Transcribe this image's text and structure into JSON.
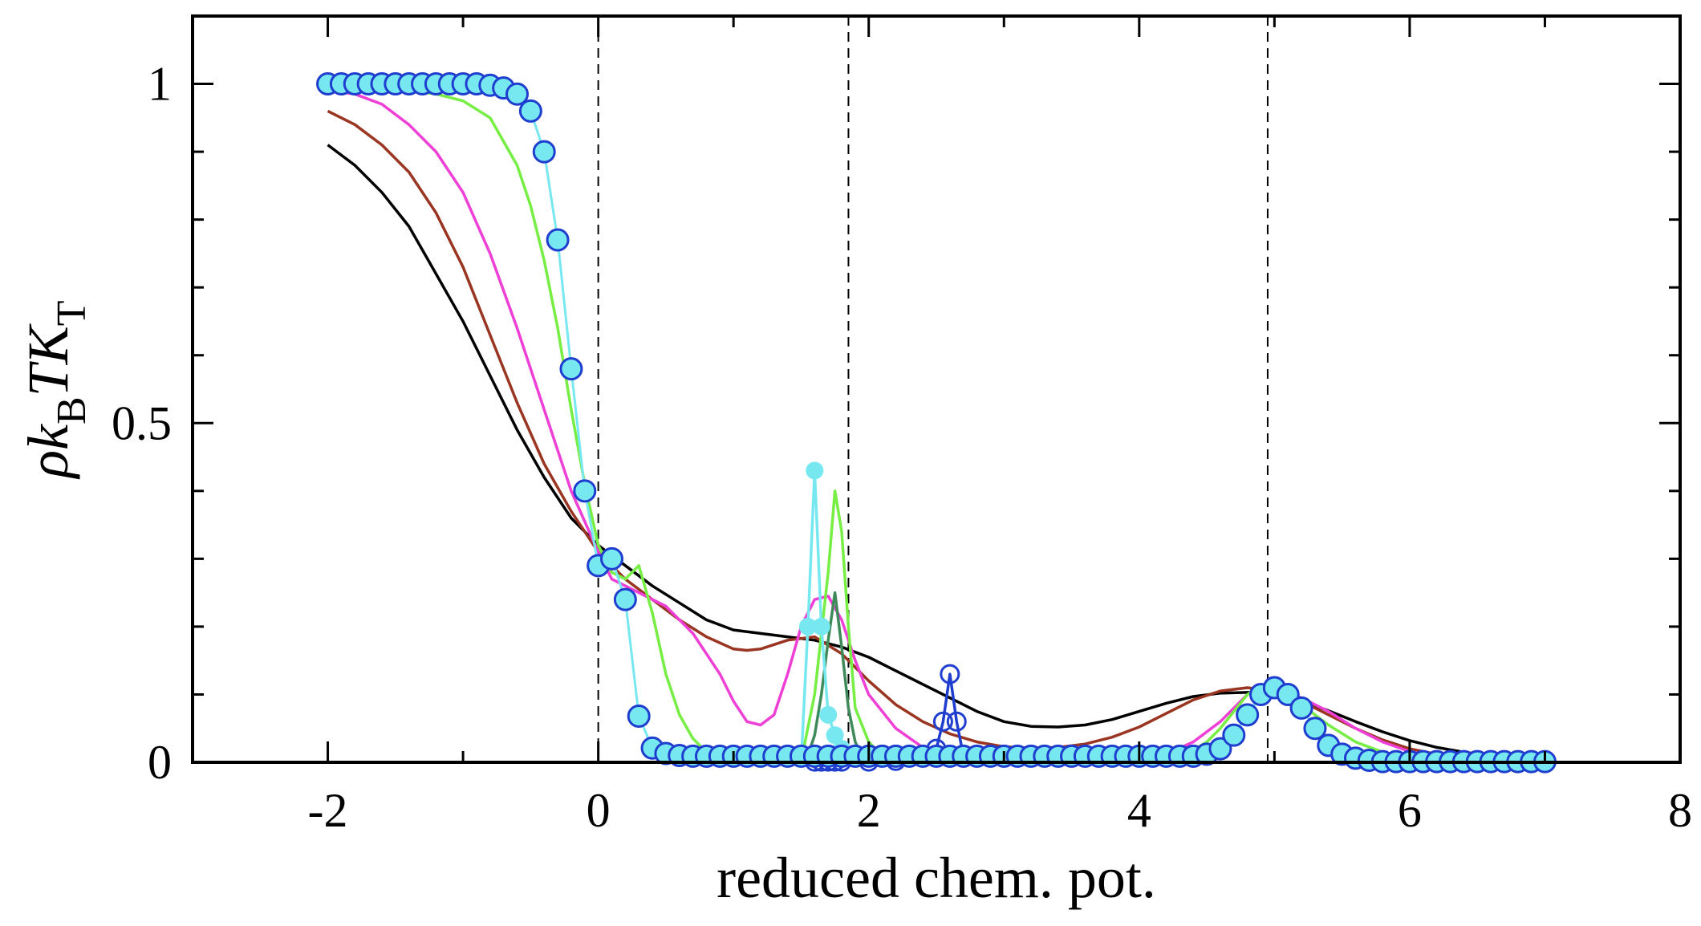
{
  "chart_data": {
    "type": "line",
    "title": "",
    "xlabel": "reduced chem. pot.",
    "ylabel": "ρk_B T K_T",
    "ylabel_parts": {
      "rho": "ρ",
      "k": "k",
      "B": "B",
      "T": "T",
      "K": "K",
      "Tsub": "T"
    },
    "xlim": [
      -3,
      8
    ],
    "ylim": [
      0,
      1.1
    ],
    "x_ticks": [
      -2,
      0,
      2,
      4,
      6,
      8
    ],
    "x_tick_labels": [
      "-2",
      "0",
      "2",
      "4",
      "6",
      "8"
    ],
    "y_ticks": [
      0,
      0.5,
      1
    ],
    "y_tick_labels": [
      "0",
      "0.5",
      "1"
    ],
    "vertical_reference_lines": [
      0,
      1.85,
      4.95
    ],
    "colors": {
      "black": "#000000",
      "brown": "#9a3522",
      "magenta": "#ee3fd6",
      "green": "#77ee44",
      "darkgreen": "#3f8a5a",
      "blue": "#1f3ecf",
      "cyan": "#77e8f0"
    },
    "series": [
      {
        "name": "black",
        "color": "#000000",
        "x": [
          -2.0,
          -1.8,
          -1.6,
          -1.4,
          -1.2,
          -1.0,
          -0.8,
          -0.6,
          -0.4,
          -0.2,
          0.0,
          0.2,
          0.4,
          0.6,
          0.8,
          1.0,
          1.2,
          1.4,
          1.6,
          1.8,
          2.0,
          2.2,
          2.4,
          2.6,
          2.8,
          3.0,
          3.2,
          3.4,
          3.6,
          3.8,
          4.0,
          4.2,
          4.4,
          4.6,
          4.8,
          5.0,
          5.2,
          5.4,
          5.6,
          5.8,
          6.0,
          6.2,
          6.4,
          6.6,
          6.8,
          7.0
        ],
        "y": [
          0.91,
          0.88,
          0.84,
          0.79,
          0.72,
          0.65,
          0.57,
          0.49,
          0.42,
          0.36,
          0.32,
          0.29,
          0.26,
          0.235,
          0.21,
          0.195,
          0.19,
          0.185,
          0.18,
          0.17,
          0.155,
          0.135,
          0.115,
          0.095,
          0.075,
          0.06,
          0.053,
          0.052,
          0.055,
          0.063,
          0.075,
          0.087,
          0.097,
          0.102,
          0.103,
          0.1,
          0.09,
          0.076,
          0.06,
          0.045,
          0.032,
          0.022,
          0.015,
          0.01,
          0.007,
          0.005
        ]
      },
      {
        "name": "brown",
        "color": "#9a3522",
        "x": [
          -2.0,
          -1.8,
          -1.6,
          -1.4,
          -1.2,
          -1.0,
          -0.8,
          -0.6,
          -0.4,
          -0.2,
          0.0,
          0.2,
          0.4,
          0.6,
          0.8,
          1.0,
          1.1,
          1.2,
          1.4,
          1.6,
          1.8,
          2.0,
          2.2,
          2.4,
          2.6,
          2.8,
          3.0,
          3.2,
          3.4,
          3.6,
          3.8,
          4.0,
          4.2,
          4.4,
          4.6,
          4.8,
          5.0,
          5.2,
          5.4,
          5.6,
          5.8,
          6.0,
          6.2,
          6.4,
          6.6,
          6.8,
          7.0
        ],
        "y": [
          0.96,
          0.94,
          0.91,
          0.87,
          0.81,
          0.73,
          0.63,
          0.53,
          0.44,
          0.37,
          0.31,
          0.27,
          0.24,
          0.21,
          0.185,
          0.167,
          0.165,
          0.167,
          0.18,
          0.185,
          0.16,
          0.12,
          0.085,
          0.06,
          0.042,
          0.03,
          0.023,
          0.021,
          0.022,
          0.027,
          0.037,
          0.052,
          0.072,
          0.092,
          0.105,
          0.11,
          0.105,
          0.09,
          0.07,
          0.05,
          0.033,
          0.02,
          0.012,
          0.007,
          0.004,
          0.002,
          0.001
        ]
      },
      {
        "name": "magenta",
        "color": "#ee3fd6",
        "x": [
          -2.0,
          -1.8,
          -1.6,
          -1.4,
          -1.2,
          -1.0,
          -0.8,
          -0.6,
          -0.4,
          -0.2,
          0.0,
          0.1,
          0.3,
          0.5,
          0.7,
          0.9,
          1.0,
          1.1,
          1.2,
          1.3,
          1.4,
          1.5,
          1.6,
          1.7,
          1.8,
          1.9,
          2.0,
          2.2,
          2.4,
          2.6,
          2.8,
          3.0,
          3.4,
          3.8,
          4.0,
          4.2,
          4.4,
          4.6,
          4.7,
          4.8,
          4.9,
          5.0,
          5.2,
          5.4,
          5.6,
          5.8,
          6.0,
          6.2,
          6.4,
          6.6,
          7.0
        ],
        "y": [
          0.99,
          0.985,
          0.97,
          0.94,
          0.9,
          0.84,
          0.75,
          0.64,
          0.52,
          0.4,
          0.31,
          0.27,
          0.25,
          0.23,
          0.19,
          0.13,
          0.09,
          0.06,
          0.055,
          0.07,
          0.13,
          0.2,
          0.24,
          0.245,
          0.21,
          0.15,
          0.1,
          0.05,
          0.022,
          0.01,
          0.004,
          0.002,
          0.001,
          0.002,
          0.005,
          0.012,
          0.03,
          0.06,
          0.08,
          0.1,
          0.11,
          0.11,
          0.095,
          0.075,
          0.05,
          0.03,
          0.016,
          0.008,
          0.004,
          0.002,
          0.001
        ]
      },
      {
        "name": "green",
        "color": "#77ee44",
        "x": [
          -2.0,
          -1.8,
          -1.6,
          -1.4,
          -1.2,
          -1.0,
          -0.8,
          -0.6,
          -0.5,
          -0.4,
          -0.3,
          -0.2,
          -0.1,
          0.0,
          0.1,
          0.2,
          0.3,
          0.4,
          0.5,
          0.6,
          0.7,
          0.8,
          0.9,
          1.0,
          1.3,
          1.5,
          1.6,
          1.7,
          1.75,
          1.8,
          1.85,
          1.9,
          2.0,
          2.1,
          2.2,
          2.4,
          2.6,
          3.0,
          3.5,
          4.0,
          4.2,
          4.4,
          4.5,
          4.6,
          4.7,
          4.8,
          4.9,
          5.0,
          5.1,
          5.2,
          5.4,
          5.6,
          5.8,
          6.0,
          6.2,
          6.5,
          7.0
        ],
        "y": [
          1.0,
          1.0,
          0.995,
          0.99,
          0.985,
          0.975,
          0.95,
          0.88,
          0.82,
          0.74,
          0.64,
          0.52,
          0.41,
          0.32,
          0.28,
          0.27,
          0.29,
          0.22,
          0.13,
          0.07,
          0.035,
          0.015,
          0.007,
          0.004,
          0.002,
          0.002,
          0.1,
          0.28,
          0.4,
          0.34,
          0.2,
          0.08,
          0.03,
          0.01,
          0.004,
          0.002,
          0.001,
          0.001,
          0.001,
          0.002,
          0.006,
          0.018,
          0.03,
          0.05,
          0.075,
          0.1,
          0.112,
          0.112,
          0.1,
          0.085,
          0.055,
          0.03,
          0.015,
          0.007,
          0.003,
          0.001,
          0.001
        ]
      },
      {
        "name": "darkgreen",
        "color": "#3f8a5a",
        "x": [
          1.5,
          1.55,
          1.6,
          1.65,
          1.7,
          1.75,
          1.8,
          1.85,
          1.9,
          1.95,
          2.0,
          2.1
        ],
        "y": [
          0.002,
          0.01,
          0.04,
          0.1,
          0.18,
          0.25,
          0.17,
          0.08,
          0.03,
          0.01,
          0.004,
          0.002
        ]
      },
      {
        "name": "blue",
        "color": "#1f3ecf",
        "x": [
          1.6,
          1.65,
          1.7,
          1.75,
          1.8,
          2.0,
          2.2,
          2.4,
          2.5,
          2.55,
          2.6,
          2.65,
          2.7
        ],
        "y": [
          0.001,
          0.001,
          0.001,
          0.001,
          0.001,
          0.001,
          0.002,
          0.008,
          0.02,
          0.06,
          0.13,
          0.06,
          0.01
        ]
      },
      {
        "name": "cyan-filled",
        "color": "#77e8f0",
        "x": [
          1.5,
          1.55,
          1.6,
          1.65,
          1.7,
          1.75,
          1.8,
          1.85
        ],
        "y": [
          0.0,
          0.2,
          0.43,
          0.2,
          0.07,
          0.04,
          0.02,
          0.01
        ]
      },
      {
        "name": "cyan-circles",
        "color": "#77e8f0",
        "edge": "#1f3ecf",
        "x": [
          -2.0,
          -1.9,
          -1.8,
          -1.7,
          -1.6,
          -1.5,
          -1.4,
          -1.3,
          -1.2,
          -1.1,
          -1.0,
          -0.9,
          -0.8,
          -0.7,
          -0.6,
          -0.5,
          -0.4,
          -0.3,
          -0.2,
          -0.1,
          0.0,
          0.1,
          0.2,
          0.3,
          0.4,
          0.5,
          0.6,
          0.7,
          0.8,
          0.9,
          1.0,
          1.1,
          1.2,
          1.3,
          1.4,
          1.5,
          1.6,
          1.7,
          1.8,
          1.9,
          2.0,
          2.1,
          2.2,
          2.3,
          2.4,
          2.5,
          2.6,
          2.7,
          2.8,
          2.9,
          3.0,
          3.1,
          3.2,
          3.3,
          3.4,
          3.5,
          3.6,
          3.7,
          3.8,
          3.9,
          4.0,
          4.1,
          4.2,
          4.3,
          4.4,
          4.5,
          4.6,
          4.7,
          4.8,
          4.9,
          5.0,
          5.1,
          5.2,
          5.3,
          5.4,
          5.5,
          5.6,
          5.7,
          5.8,
          5.9,
          6.0,
          6.1,
          6.2,
          6.3,
          6.4,
          6.5,
          6.6,
          6.7,
          6.8,
          6.9,
          7.0
        ],
        "y": [
          1.0,
          1.0,
          1.0,
          1.0,
          1.0,
          1.0,
          1.0,
          1.0,
          1.0,
          1.0,
          1.0,
          1.0,
          0.998,
          0.994,
          0.985,
          0.96,
          0.9,
          0.77,
          0.58,
          0.4,
          0.29,
          0.3,
          0.24,
          0.068,
          0.021,
          0.013,
          0.01,
          0.009,
          0.009,
          0.009,
          0.009,
          0.009,
          0.009,
          0.009,
          0.009,
          0.009,
          0.009,
          0.009,
          0.009,
          0.009,
          0.009,
          0.009,
          0.009,
          0.009,
          0.009,
          0.009,
          0.009,
          0.009,
          0.009,
          0.009,
          0.009,
          0.009,
          0.009,
          0.009,
          0.009,
          0.009,
          0.009,
          0.009,
          0.009,
          0.009,
          0.009,
          0.009,
          0.009,
          0.009,
          0.009,
          0.012,
          0.02,
          0.04,
          0.07,
          0.1,
          0.11,
          0.1,
          0.08,
          0.05,
          0.025,
          0.012,
          0.006,
          0.003,
          0.001,
          0.001,
          0.001,
          0.001,
          0.001,
          0.001,
          0.001,
          0.001,
          0.001,
          0.001,
          0.001,
          0.001,
          0.001
        ]
      }
    ]
  }
}
